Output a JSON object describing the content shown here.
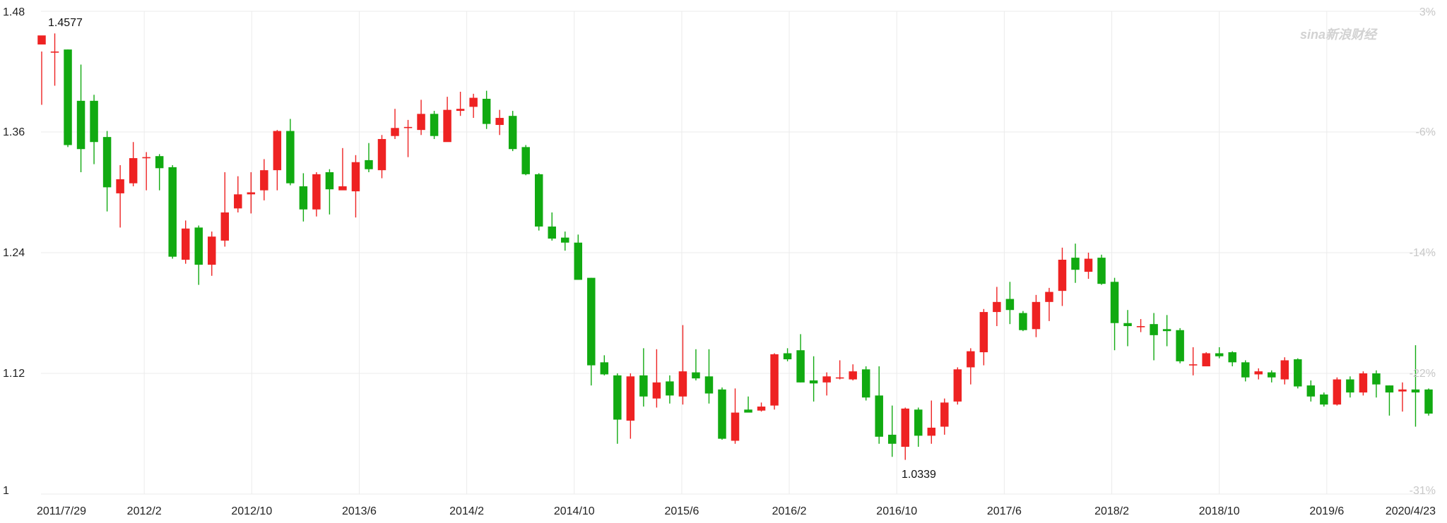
{
  "watermark": "sina新浪财经",
  "chart_data": {
    "type": "candlestick",
    "x_ticks": [
      "2011/7/29",
      "2012/2",
      "2012/10",
      "2013/6",
      "2014/2",
      "2014/10",
      "2015/6",
      "2016/2",
      "2016/10",
      "2017/6",
      "2018/2",
      "2018/10",
      "2019/6",
      "2020/4/23"
    ],
    "y_left": {
      "ticks": [
        "1.48",
        "1.36",
        "1.24",
        "1.12",
        "1"
      ],
      "range": [
        1.0,
        1.48
      ]
    },
    "y_right": {
      "ticks": [
        "3%",
        "-6%",
        "-14%",
        "-22%",
        "-31%"
      ]
    },
    "annotations": {
      "max": "1.4577",
      "min": "1.0339"
    },
    "colors": {
      "up": "#ee2222",
      "down": "#11aa11",
      "grid": "#ebebeb"
    },
    "candles": [
      [
        1.447,
        1.456,
        1.44,
        1.387
      ],
      [
        1.44,
        1.44,
        1.458,
        1.406
      ],
      [
        1.442,
        1.347,
        1.442,
        1.345
      ],
      [
        1.391,
        1.343,
        1.427,
        1.32
      ],
      [
        1.391,
        1.35,
        1.397,
        1.328
      ],
      [
        1.355,
        1.305,
        1.361,
        1.281
      ],
      [
        1.299,
        1.313,
        1.327,
        1.265
      ],
      [
        1.309,
        1.334,
        1.35,
        1.306
      ],
      [
        1.334,
        1.335,
        1.34,
        1.302
      ],
      [
        1.336,
        1.324,
        1.338,
        1.302
      ],
      [
        1.325,
        1.236,
        1.327,
        1.234
      ],
      [
        1.233,
        1.264,
        1.272,
        1.229
      ],
      [
        1.265,
        1.228,
        1.267,
        1.208
      ],
      [
        1.228,
        1.256,
        1.261,
        1.217
      ],
      [
        1.252,
        1.28,
        1.32,
        1.246
      ],
      [
        1.284,
        1.298,
        1.316,
        1.28
      ],
      [
        1.298,
        1.3,
        1.32,
        1.279
      ],
      [
        1.302,
        1.322,
        1.333,
        1.292
      ],
      [
        1.322,
        1.361,
        1.362,
        1.302
      ],
      [
        1.361,
        1.309,
        1.373,
        1.307
      ],
      [
        1.306,
        1.283,
        1.319,
        1.271
      ],
      [
        1.283,
        1.318,
        1.32,
        1.276
      ],
      [
        1.32,
        1.303,
        1.323,
        1.278
      ],
      [
        1.302,
        1.306,
        1.344,
        1.303
      ],
      [
        1.301,
        1.33,
        1.337,
        1.275
      ],
      [
        1.332,
        1.323,
        1.349,
        1.32
      ],
      [
        1.322,
        1.353,
        1.357,
        1.314
      ],
      [
        1.356,
        1.364,
        1.383,
        1.353
      ],
      [
        1.364,
        1.365,
        1.372,
        1.335
      ],
      [
        1.362,
        1.378,
        1.392,
        1.357
      ],
      [
        1.378,
        1.356,
        1.381,
        1.353
      ],
      [
        1.35,
        1.382,
        1.395,
        1.352
      ],
      [
        1.381,
        1.383,
        1.4,
        1.376
      ],
      [
        1.385,
        1.394,
        1.398,
        1.374
      ],
      [
        1.393,
        1.368,
        1.401,
        1.363
      ],
      [
        1.367,
        1.374,
        1.382,
        1.357
      ],
      [
        1.376,
        1.343,
        1.381,
        1.341
      ],
      [
        1.345,
        1.318,
        1.347,
        1.317
      ],
      [
        1.318,
        1.266,
        1.319,
        1.262
      ],
      [
        1.266,
        1.254,
        1.28,
        1.252
      ],
      [
        1.255,
        1.25,
        1.261,
        1.242
      ],
      [
        1.25,
        1.213,
        1.258,
        1.213
      ],
      [
        1.215,
        1.128,
        1.215,
        1.108
      ],
      [
        1.131,
        1.119,
        1.138,
        1.118
      ],
      [
        1.118,
        1.074,
        1.12,
        1.05
      ],
      [
        1.073,
        1.117,
        1.12,
        1.055
      ],
      [
        1.118,
        1.097,
        1.145,
        1.087
      ],
      [
        1.095,
        1.111,
        1.144,
        1.086
      ],
      [
        1.112,
        1.098,
        1.118,
        1.09
      ],
      [
        1.097,
        1.122,
        1.168,
        1.089
      ],
      [
        1.121,
        1.115,
        1.144,
        1.113
      ],
      [
        1.117,
        1.1,
        1.144,
        1.09
      ],
      [
        1.104,
        1.055,
        1.106,
        1.054
      ],
      [
        1.053,
        1.081,
        1.105,
        1.05
      ],
      [
        1.084,
        1.081,
        1.097,
        1.082
      ],
      [
        1.083,
        1.087,
        1.091,
        1.082
      ],
      [
        1.088,
        1.139,
        1.14,
        1.084
      ],
      [
        1.14,
        1.134,
        1.145,
        1.132
      ],
      [
        1.143,
        1.111,
        1.159,
        1.111
      ],
      [
        1.113,
        1.11,
        1.137,
        1.092
      ],
      [
        1.111,
        1.117,
        1.121,
        1.098
      ],
      [
        1.116,
        1.116,
        1.133,
        1.114
      ],
      [
        1.114,
        1.122,
        1.129,
        1.113
      ],
      [
        1.124,
        1.096,
        1.127,
        1.093
      ],
      [
        1.098,
        1.057,
        1.127,
        1.05
      ],
      [
        1.059,
        1.05,
        1.088,
        1.037
      ],
      [
        1.047,
        1.085,
        1.086,
        1.034
      ],
      [
        1.084,
        1.058,
        1.086,
        1.047
      ],
      [
        1.058,
        1.066,
        1.093,
        1.05
      ],
      [
        1.067,
        1.091,
        1.095,
        1.059
      ],
      [
        1.092,
        1.124,
        1.126,
        1.089
      ],
      [
        1.126,
        1.142,
        1.145,
        1.109
      ],
      [
        1.141,
        1.181,
        1.184,
        1.128
      ],
      [
        1.181,
        1.191,
        1.206,
        1.167
      ],
      [
        1.194,
        1.183,
        1.211,
        1.169
      ],
      [
        1.18,
        1.163,
        1.182,
        1.162
      ],
      [
        1.164,
        1.191,
        1.198,
        1.156
      ],
      [
        1.191,
        1.201,
        1.205,
        1.172
      ],
      [
        1.202,
        1.233,
        1.245,
        1.187
      ],
      [
        1.235,
        1.223,
        1.249,
        1.21
      ],
      [
        1.221,
        1.234,
        1.24,
        1.214
      ],
      [
        1.235,
        1.209,
        1.238,
        1.208
      ],
      [
        1.211,
        1.17,
        1.215,
        1.143
      ],
      [
        1.17,
        1.167,
        1.183,
        1.147
      ],
      [
        1.167,
        1.167,
        1.174,
        1.161
      ],
      [
        1.169,
        1.158,
        1.18,
        1.133
      ],
      [
        1.164,
        1.162,
        1.178,
        1.147
      ],
      [
        1.163,
        1.132,
        1.165,
        1.13
      ],
      [
        1.128,
        1.129,
        1.146,
        1.118
      ],
      [
        1.127,
        1.14,
        1.141,
        1.127
      ],
      [
        1.14,
        1.137,
        1.146,
        1.135
      ],
      [
        1.141,
        1.131,
        1.142,
        1.127
      ],
      [
        1.131,
        1.116,
        1.133,
        1.112
      ],
      [
        1.119,
        1.122,
        1.125,
        1.114
      ],
      [
        1.121,
        1.116,
        1.123,
        1.111
      ],
      [
        1.114,
        1.133,
        1.136,
        1.109
      ],
      [
        1.134,
        1.107,
        1.135,
        1.105
      ],
      [
        1.108,
        1.097,
        1.113,
        1.092
      ],
      [
        1.099,
        1.089,
        1.101,
        1.087
      ],
      [
        1.089,
        1.114,
        1.116,
        1.088
      ],
      [
        1.114,
        1.101,
        1.117,
        1.096
      ],
      [
        1.101,
        1.12,
        1.122,
        1.098
      ],
      [
        1.12,
        1.109,
        1.123,
        1.096
      ],
      [
        1.108,
        1.101,
        1.108,
        1.078
      ],
      [
        1.102,
        1.104,
        1.111,
        1.082
      ],
      [
        1.104,
        1.101,
        1.148,
        1.067
      ],
      [
        1.104,
        1.08,
        1.105,
        1.078
      ]
    ]
  }
}
